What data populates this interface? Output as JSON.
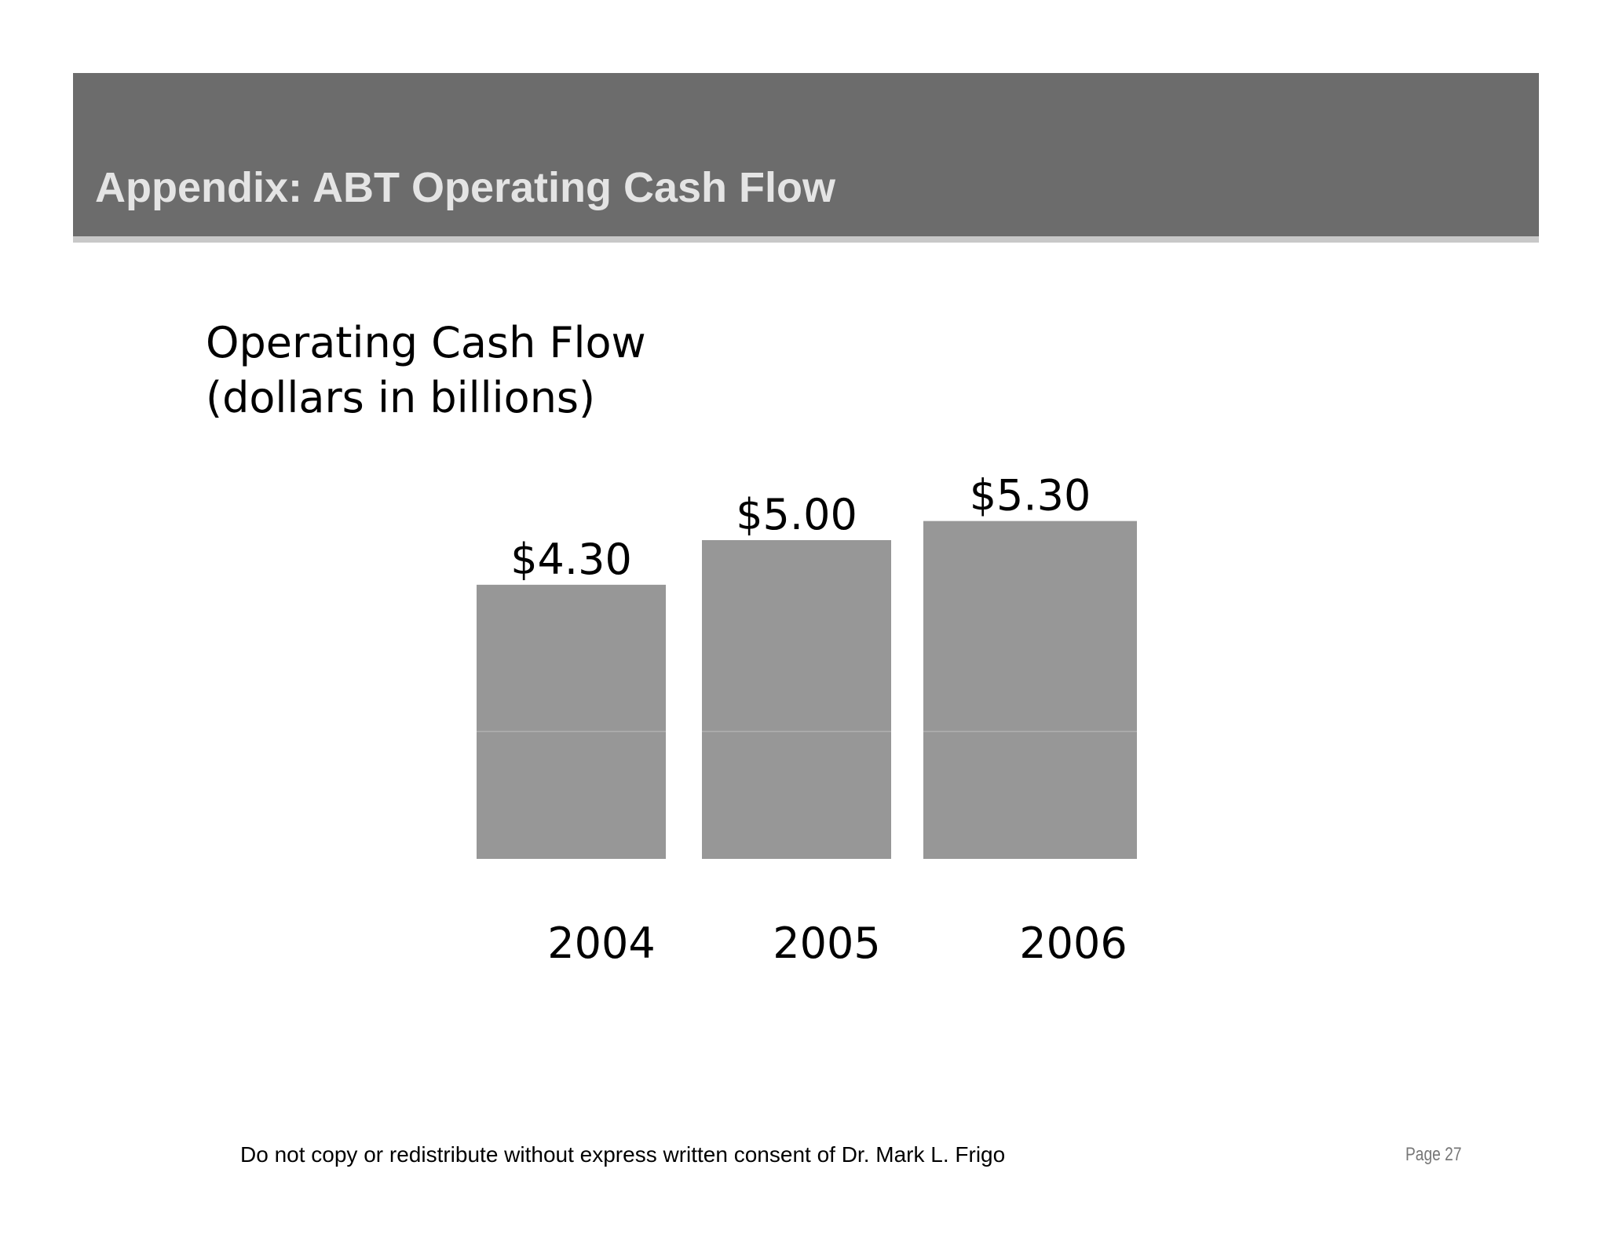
{
  "slide": {
    "title": "Appendix:  ABT Operating Cash Flow",
    "footer": "Do not copy or redistribute without express written consent of Dr. Mark L. Frigo",
    "page_label": "Page  27"
  },
  "chart_data": {
    "type": "bar",
    "title": "Operating Cash Flow",
    "subtitle": "(dollars in billions)",
    "categories": [
      "2004",
      "2005",
      "2006"
    ],
    "values": [
      4.3,
      5.0,
      5.3
    ],
    "value_labels": [
      "$4.30",
      "$5.00",
      "$5.30"
    ],
    "xlabel": "",
    "ylabel": "",
    "bar_color": "#979797",
    "grid": false,
    "legend": "none"
  }
}
